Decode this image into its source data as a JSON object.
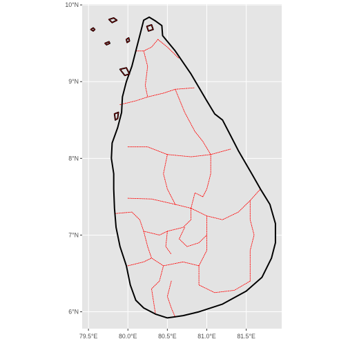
{
  "map": {
    "type": "geographic-map",
    "subject": "Sri Lanka administrative boundaries",
    "panel_background": "#e5e5e5",
    "grid_color": "#ffffff",
    "land_fill": "#e3e3e3",
    "coastline_color": "#000000",
    "boundary_color": "#ff0000",
    "boundary_style": "dotted",
    "grid": true,
    "legend": "none",
    "x_axis": {
      "range": [
        79.42,
        81.95
      ],
      "ticks": [
        {
          "value": 79.5,
          "label": "79.5°E"
        },
        {
          "value": 80.0,
          "label": "80.0°E"
        },
        {
          "value": 80.5,
          "label": "80.5°E"
        },
        {
          "value": 81.0,
          "label": "81.0°E"
        },
        {
          "value": 81.5,
          "label": "81.5°E"
        }
      ]
    },
    "y_axis": {
      "range": [
        5.78,
        10.01
      ],
      "ticks": [
        {
          "value": 6,
          "label": "6°N"
        },
        {
          "value": 7,
          "label": "7°N"
        },
        {
          "value": 8,
          "label": "8°N"
        },
        {
          "value": 9,
          "label": "9°N"
        },
        {
          "value": 10,
          "label": "10°N"
        }
      ]
    },
    "coastline": [
      [
        80.2,
        9.8
      ],
      [
        80.27,
        9.84
      ],
      [
        80.35,
        9.79
      ],
      [
        80.43,
        9.73
      ],
      [
        80.44,
        9.6
      ],
      [
        80.6,
        9.4
      ],
      [
        80.8,
        9.1
      ],
      [
        81.0,
        8.75
      ],
      [
        81.1,
        8.58
      ],
      [
        81.2,
        8.5
      ],
      [
        81.3,
        8.3
      ],
      [
        81.4,
        8.1
      ],
      [
        81.57,
        7.8
      ],
      [
        81.68,
        7.6
      ],
      [
        81.8,
        7.4
      ],
      [
        81.87,
        7.15
      ],
      [
        81.87,
        6.9
      ],
      [
        81.82,
        6.7
      ],
      [
        81.7,
        6.45
      ],
      [
        81.5,
        6.27
      ],
      [
        81.2,
        6.1
      ],
      [
        80.9,
        6.0
      ],
      [
        80.7,
        5.95
      ],
      [
        80.5,
        5.92
      ],
      [
        80.35,
        5.97
      ],
      [
        80.2,
        6.05
      ],
      [
        80.1,
        6.15
      ],
      [
        80.03,
        6.35
      ],
      [
        79.98,
        6.6
      ],
      [
        79.9,
        6.85
      ],
      [
        79.85,
        7.1
      ],
      [
        79.83,
        7.35
      ],
      [
        79.82,
        7.6
      ],
      [
        79.82,
        7.8
      ],
      [
        79.79,
        8.0
      ],
      [
        79.8,
        8.2
      ],
      [
        79.87,
        8.4
      ],
      [
        79.92,
        8.6
      ],
      [
        79.93,
        8.8
      ],
      [
        79.98,
        9.0
      ],
      [
        80.05,
        9.2
      ],
      [
        80.1,
        9.4
      ],
      [
        80.15,
        9.6
      ],
      [
        80.2,
        9.8
      ]
    ],
    "islands": [
      [
        [
          79.53,
          9.68
        ],
        [
          79.56,
          9.7
        ],
        [
          79.58,
          9.68
        ],
        [
          79.56,
          9.66
        ]
      ],
      [
        [
          79.71,
          9.5
        ],
        [
          79.76,
          9.52
        ],
        [
          79.77,
          9.5
        ],
        [
          79.73,
          9.48
        ]
      ],
      [
        [
          79.76,
          9.81
        ],
        [
          79.82,
          9.83
        ],
        [
          79.86,
          9.8
        ],
        [
          79.8,
          9.77
        ]
      ],
      [
        [
          79.98,
          9.55
        ],
        [
          80.01,
          9.57
        ],
        [
          80.02,
          9.53
        ],
        [
          79.99,
          9.51
        ]
      ],
      [
        [
          79.9,
          9.16
        ],
        [
          79.98,
          9.18
        ],
        [
          80.02,
          9.1
        ],
        [
          79.96,
          9.08
        ]
      ],
      [
        [
          79.83,
          8.58
        ],
        [
          79.88,
          8.6
        ],
        [
          79.87,
          8.52
        ],
        [
          79.84,
          8.5
        ]
      ],
      [
        [
          80.24,
          9.72
        ],
        [
          80.3,
          9.74
        ],
        [
          80.32,
          9.68
        ],
        [
          80.26,
          9.66
        ]
      ]
    ],
    "boundaries": [
      [
        [
          80.38,
          9.55
        ],
        [
          80.3,
          9.45
        ],
        [
          80.2,
          9.4
        ],
        [
          80.1,
          9.4
        ]
      ],
      [
        [
          80.38,
          9.55
        ],
        [
          80.5,
          9.45
        ],
        [
          80.65,
          9.3
        ]
      ],
      [
        [
          80.2,
          9.4
        ],
        [
          80.25,
          9.2
        ],
        [
          80.22,
          8.95
        ],
        [
          80.25,
          8.8
        ]
      ],
      [
        [
          80.25,
          8.8
        ],
        [
          80.45,
          8.85
        ],
        [
          80.6,
          8.9
        ],
        [
          80.85,
          8.92
        ]
      ],
      [
        [
          79.9,
          8.7
        ],
        [
          80.1,
          8.75
        ],
        [
          80.25,
          8.8
        ]
      ],
      [
        [
          80.0,
          8.15
        ],
        [
          80.25,
          8.15
        ],
        [
          80.5,
          8.05
        ],
        [
          80.8,
          8.02
        ],
        [
          81.05,
          8.05
        ],
        [
          81.3,
          8.12
        ]
      ],
      [
        [
          80.6,
          8.9
        ],
        [
          80.72,
          8.6
        ],
        [
          80.85,
          8.35
        ],
        [
          80.95,
          8.22
        ],
        [
          81.05,
          8.05
        ]
      ],
      [
        [
          81.05,
          8.05
        ],
        [
          81.05,
          7.8
        ],
        [
          81.0,
          7.6
        ],
        [
          80.95,
          7.5
        ]
      ],
      [
        [
          80.0,
          7.48
        ],
        [
          80.3,
          7.47
        ],
        [
          80.6,
          7.4
        ],
        [
          80.8,
          7.35
        ],
        [
          81.0,
          7.25
        ],
        [
          81.2,
          7.2
        ],
        [
          81.4,
          7.3
        ],
        [
          81.55,
          7.45
        ],
        [
          81.68,
          7.6
        ]
      ],
      [
        [
          80.5,
          8.05
        ],
        [
          80.45,
          7.8
        ],
        [
          80.5,
          7.6
        ],
        [
          80.6,
          7.4
        ]
      ],
      [
        [
          79.84,
          7.28
        ],
        [
          80.05,
          7.3
        ],
        [
          80.15,
          7.2
        ],
        [
          80.2,
          7.05
        ]
      ],
      [
        [
          80.2,
          7.05
        ],
        [
          80.4,
          7.0
        ],
        [
          80.5,
          7.05
        ],
        [
          80.7,
          7.1
        ],
        [
          80.8,
          7.2
        ],
        [
          80.8,
          7.35
        ]
      ],
      [
        [
          80.2,
          7.05
        ],
        [
          80.25,
          6.85
        ],
        [
          80.3,
          6.7
        ],
        [
          80.45,
          6.6
        ],
        [
          80.7,
          6.65
        ],
        [
          80.9,
          6.6
        ]
      ],
      [
        [
          80.5,
          7.05
        ],
        [
          80.48,
          6.85
        ],
        [
          80.55,
          6.75
        ]
      ],
      [
        [
          80.9,
          6.6
        ],
        [
          81.0,
          6.8
        ],
        [
          81.0,
          7.0
        ],
        [
          81.0,
          7.25
        ]
      ],
      [
        [
          80.9,
          6.6
        ],
        [
          80.9,
          6.35
        ],
        [
          81.1,
          6.25
        ],
        [
          81.35,
          6.28
        ],
        [
          81.55,
          6.4
        ]
      ],
      [
        [
          80.45,
          6.6
        ],
        [
          80.4,
          6.4
        ],
        [
          80.3,
          6.3
        ],
        [
          80.35,
          5.97
        ]
      ],
      [
        [
          80.55,
          6.4
        ],
        [
          80.5,
          6.2
        ],
        [
          80.55,
          6.05
        ],
        [
          80.6,
          5.93
        ]
      ],
      [
        [
          80.0,
          6.6
        ],
        [
          80.2,
          6.65
        ],
        [
          80.3,
          6.7
        ]
      ],
      [
        [
          81.55,
          6.4
        ],
        [
          81.55,
          6.8
        ],
        [
          81.6,
          7.0
        ],
        [
          81.55,
          7.2
        ],
        [
          81.55,
          7.45
        ]
      ],
      [
        [
          80.8,
          7.35
        ],
        [
          80.85,
          7.55
        ],
        [
          80.95,
          7.5
        ]
      ],
      [
        [
          80.72,
          7.1
        ],
        [
          80.65,
          6.95
        ],
        [
          80.75,
          6.85
        ],
        [
          80.9,
          6.9
        ],
        [
          81.0,
          7.0
        ]
      ]
    ]
  }
}
